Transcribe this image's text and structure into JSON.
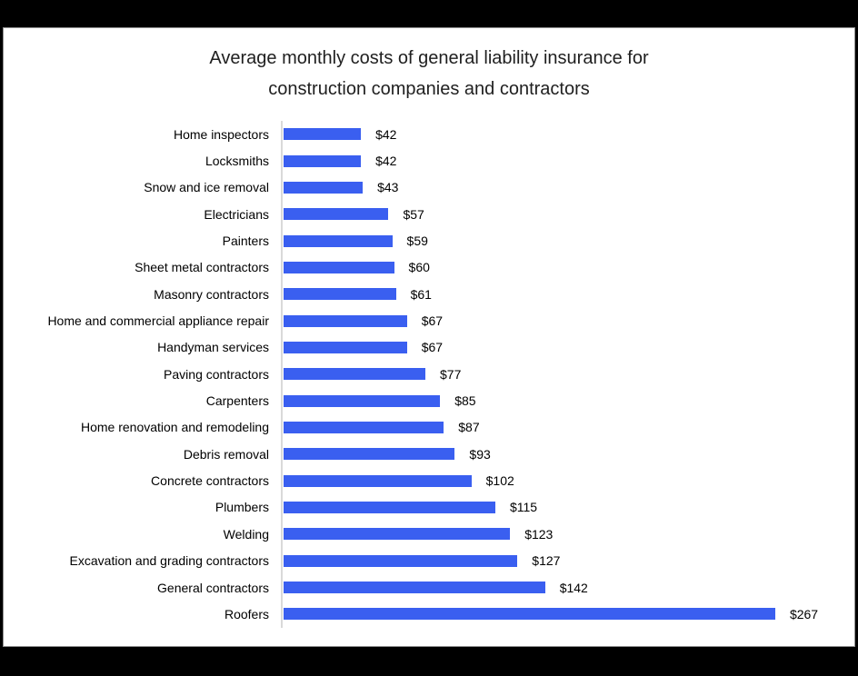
{
  "window": {
    "background_color": "#000000",
    "surface_color": "#ffffff",
    "surface_border_color": "#8f8f8f"
  },
  "chart_data": {
    "type": "bar",
    "orientation": "horizontal",
    "title": "Average monthly costs of general liability insurance for construction companies and contractors",
    "title_line1": "Average monthly costs of general liability insurance for",
    "title_line2": "construction companies and contractors",
    "categories": [
      "Home inspectors",
      "Locksmiths",
      "Snow and ice removal",
      "Electricians",
      "Painters",
      "Sheet metal contractors",
      "Masonry contractors",
      "Home and commercial appliance repair",
      "Handyman services",
      "Paving contractors",
      "Carpenters",
      "Home renovation and remodeling",
      "Debris removal",
      "Concrete contractors",
      "Plumbers",
      "Welding",
      "Excavation and grading contractors",
      "General contractors",
      "Roofers"
    ],
    "values": [
      42,
      42,
      43,
      57,
      59,
      60,
      61,
      67,
      67,
      77,
      85,
      87,
      93,
      102,
      115,
      123,
      127,
      142,
      267
    ],
    "value_labels": [
      "$42",
      "$42",
      "$43",
      "$57",
      "$59",
      "$60",
      "$61",
      "$67",
      "$67",
      "$77",
      "$85",
      "$87",
      "$93",
      "$102",
      "$115",
      "$123",
      "$127",
      "$142",
      "$267"
    ],
    "value_label_prefix": "$",
    "xlim": [
      0,
      280
    ],
    "bar_color": "#3A5FF0",
    "axis_line_color": "#D9D9D9",
    "text_color": "#000000",
    "grid": false,
    "legend": false,
    "data_labels": "outside-end"
  }
}
